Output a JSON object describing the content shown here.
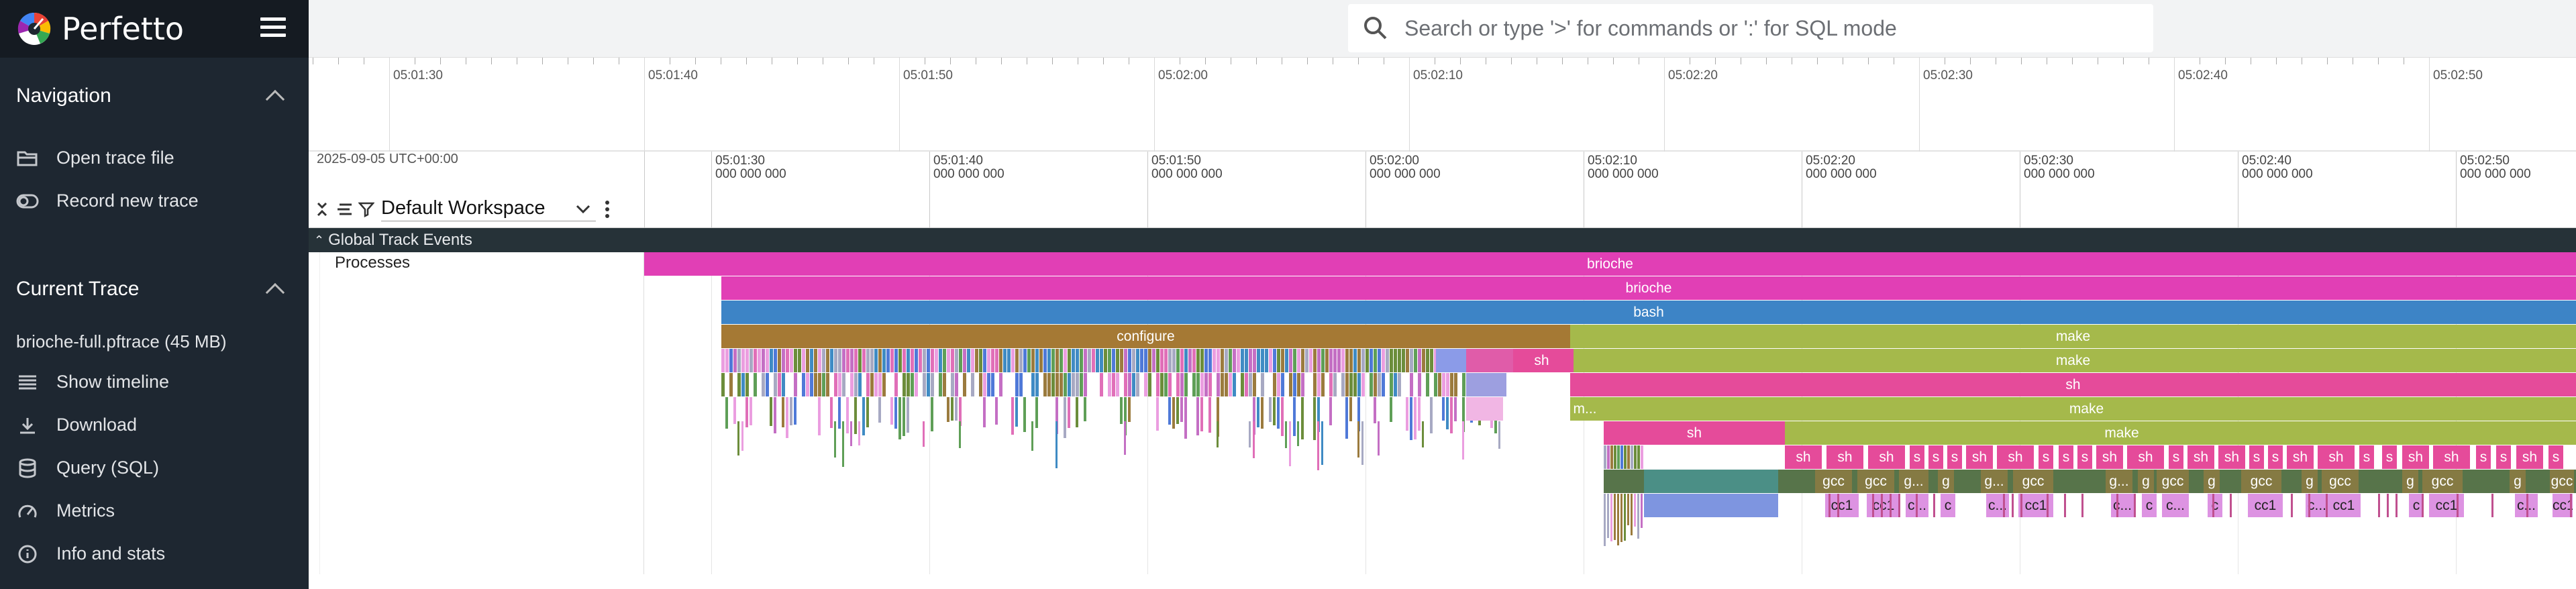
{
  "app": {
    "brand": "Perfetto"
  },
  "sidebar": {
    "navigation": {
      "title": "Navigation",
      "items": [
        {
          "label": "Open trace file",
          "icon": "folder-open-icon"
        },
        {
          "label": "Record new trace",
          "icon": "record-toggle-icon"
        }
      ]
    },
    "current_trace": {
      "title": "Current Trace",
      "trace_name": "brioche-full.pftrace (45 MB)",
      "items": [
        {
          "label": "Show timeline",
          "icon": "timeline-icon"
        },
        {
          "label": "Download",
          "icon": "download-icon"
        },
        {
          "label": "Query (SQL)",
          "icon": "database-icon"
        },
        {
          "label": "Metrics",
          "icon": "speed-icon"
        },
        {
          "label": "Info and stats",
          "icon": "info-icon"
        }
      ]
    }
  },
  "search": {
    "placeholder": "Search or type '>' for commands or ':' for SQL mode"
  },
  "overview": {
    "ticks": [
      "05:01:30",
      "05:01:40",
      "05:01:50",
      "05:02:00",
      "05:02:10",
      "05:02:20",
      "05:02:30",
      "05:02:40",
      "05:02:50"
    ]
  },
  "timeline": {
    "timezone": "2025-09-05 UTC+00:00",
    "workspace": "Default Workspace",
    "ticks": [
      {
        "time": "05:01:30",
        "sub": "000 000 000"
      },
      {
        "time": "05:01:40",
        "sub": "000 000 000"
      },
      {
        "time": "05:01:50",
        "sub": "000 000 000"
      },
      {
        "time": "05:02:00",
        "sub": "000 000 000"
      },
      {
        "time": "05:02:10",
        "sub": "000 000 000"
      },
      {
        "time": "05:02:20",
        "sub": "000 000 000"
      },
      {
        "time": "05:02:30",
        "sub": "000 000 000"
      },
      {
        "time": "05:02:40",
        "sub": "000 000 000"
      },
      {
        "time": "05:02:50",
        "sub": "000 000 000"
      }
    ]
  },
  "tracks": {
    "group_title": "Global Track Events",
    "process_label": "Processes",
    "slices": {
      "root": "brioche",
      "root2": "brioche",
      "shell": "bash",
      "configure": "configure",
      "make1": "make",
      "make2": "make",
      "sh1": "sh",
      "sh2": "sh",
      "sh3": "sh",
      "make3": "make",
      "make4": "make",
      "m_abbrev": "m...",
      "sh_label": "sh",
      "s_label": "s",
      "gcc_label": "gcc",
      "g_label": "g",
      "gdots_label": "g...",
      "cc1_label": "cc1",
      "c_label": "c",
      "cdots_label": "c...",
      "ccdots_label": "c..."
    }
  },
  "colors": {
    "sidebar_bg": "#1e2731",
    "brioche": "#e13fb5",
    "bash": "#3d84c6",
    "configure": "#a57934",
    "make": "#a5b94b",
    "sh": "#e54b9a",
    "gcc": "#857a43",
    "cc1": "#dd93e2"
  }
}
